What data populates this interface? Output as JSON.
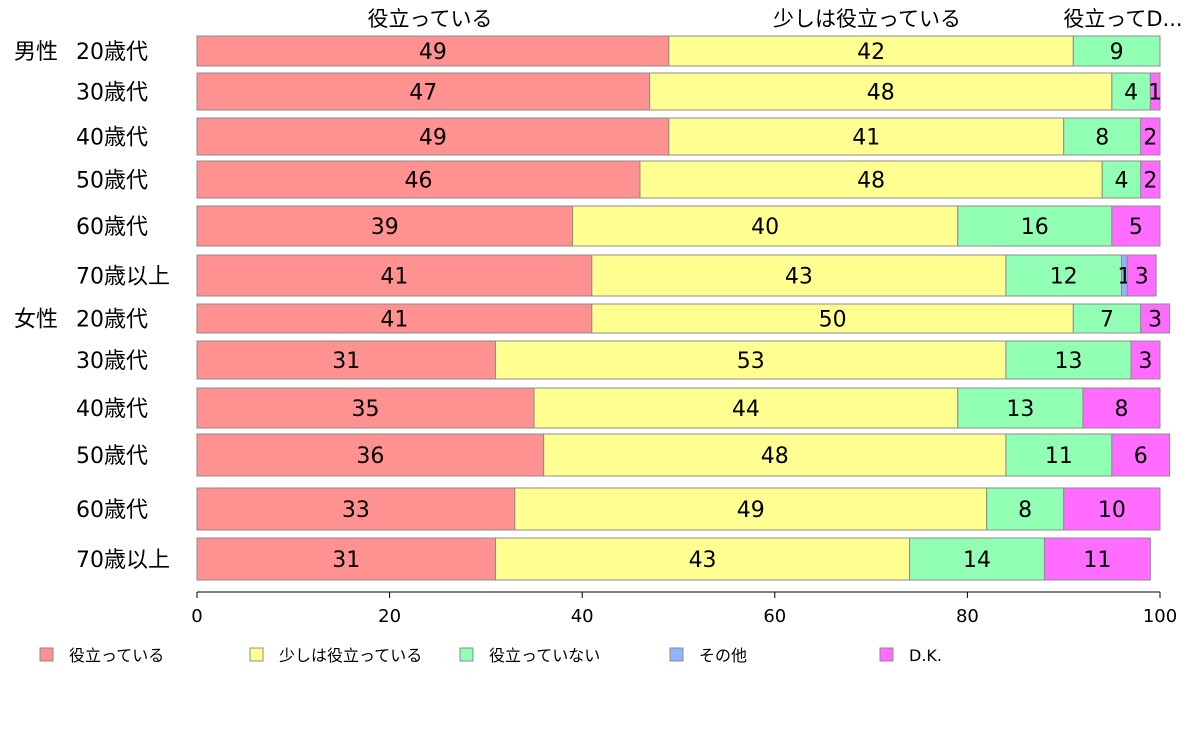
{
  "chart_data": {
    "type": "bar",
    "orientation": "horizontal",
    "stacked": true,
    "xlim": [
      0,
      100
    ],
    "xticks": [
      0,
      20,
      40,
      60,
      80,
      100
    ],
    "grid": false,
    "legend_position": "bottom",
    "top_labels": [
      "役立っている",
      "少しは役立っている",
      "役立ってD..."
    ],
    "groups": [
      {
        "label": "男性",
        "first_row": 0
      },
      {
        "label": "女性",
        "first_row": 6
      }
    ],
    "rows": [
      "20歳代",
      "30歳代",
      "40歳代",
      "50歳代",
      "60歳代",
      "70歳以上",
      "20歳代",
      "30歳代",
      "40歳代",
      "50歳代",
      "60歳代",
      "70歳以上"
    ],
    "series": [
      {
        "name": "役立っている",
        "color": "#ff9191",
        "values": [
          49,
          47,
          49,
          46,
          39,
          41,
          41,
          31,
          35,
          36,
          33,
          31
        ],
        "labels": [
          "49",
          "47",
          "49",
          "46",
          "39",
          "41",
          "41",
          "31",
          "35",
          "36",
          "33",
          "31"
        ]
      },
      {
        "name": "少しは役立っている",
        "color": "#ffff91",
        "values": [
          42,
          48,
          41,
          48,
          40,
          43,
          50,
          53,
          44,
          48,
          49,
          43
        ],
        "labels": [
          "42",
          "48",
          "41",
          "48",
          "40",
          "43",
          "50",
          "53",
          "44",
          "48",
          "49",
          "43"
        ]
      },
      {
        "name": "役立っていない",
        "color": "#91ffb4",
        "values": [
          9,
          4,
          8,
          4,
          16,
          12,
          7,
          13,
          13,
          11,
          8,
          14
        ],
        "labels": [
          "9",
          "4",
          "8",
          "4",
          "16",
          "12",
          "7",
          "13",
          "13",
          "11",
          "8",
          "14"
        ]
      },
      {
        "name": "その他",
        "color": "#91b4ff",
        "values": [
          0,
          0,
          0,
          0,
          0,
          0.6,
          0,
          0,
          0,
          0,
          0,
          0
        ],
        "labels": [
          "",
          "",
          "",
          "",
          "",
          "1",
          "",
          "",
          "",
          "",
          "",
          ""
        ]
      },
      {
        "name": "D.K.",
        "color": "#ff6cff",
        "values": [
          0,
          1,
          2,
          2,
          5,
          3,
          3,
          3,
          8,
          6,
          10,
          11
        ],
        "labels": [
          "",
          "1",
          "2",
          "2",
          "5",
          "3",
          "3",
          "3",
          "8",
          "6",
          "10",
          "11"
        ]
      }
    ]
  }
}
